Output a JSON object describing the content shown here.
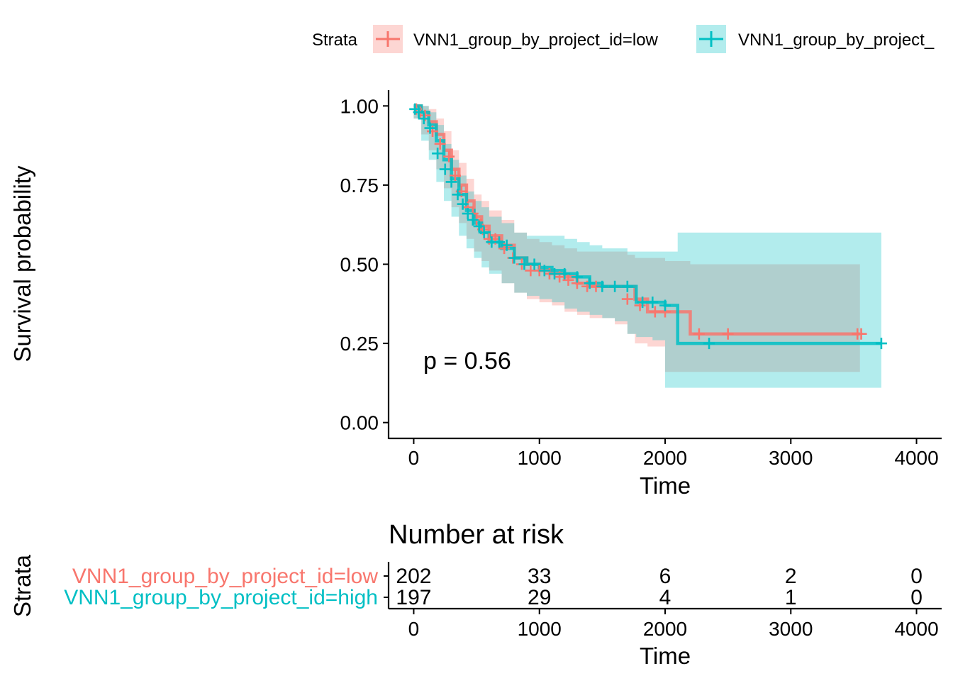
{
  "colors": {
    "low": "#F8766D",
    "high": "#00BFC4",
    "low_fill": "#F8766D",
    "high_fill": "#00BFC4",
    "overlap": "#7f7f7f"
  },
  "legend": {
    "title": "Strata",
    "items": [
      "VNN1_group_by_project_id=low",
      "VNN1_group_by_project_"
    ]
  },
  "chart_data": [
    {
      "type": "line",
      "subtype": "kaplan-meier",
      "title": "",
      "xlabel": "Time",
      "ylabel": "Survival probability",
      "xlim": [
        -200,
        4200
      ],
      "ylim": [
        -0.05,
        1.05
      ],
      "x_ticks": [
        "0",
        "1000",
        "2000",
        "3000",
        "4000"
      ],
      "y_ticks": [
        "0.00",
        "0.25",
        "0.50",
        "0.75",
        "1.00"
      ],
      "annotation": "p = 0.56",
      "series": [
        {
          "name": "VNN1_group_by_project_id=low",
          "color_key": "low",
          "x": [
            0,
            60,
            120,
            180,
            240,
            300,
            360,
            420,
            480,
            540,
            600,
            700,
            800,
            900,
            1000,
            1100,
            1200,
            1300,
            1400,
            1500,
            1600,
            1700,
            1760,
            1860,
            2000,
            2200,
            2500,
            3000,
            3550
          ],
          "y": [
            1.0,
            0.98,
            0.95,
            0.91,
            0.86,
            0.8,
            0.75,
            0.7,
            0.65,
            0.62,
            0.59,
            0.56,
            0.52,
            0.5,
            0.48,
            0.47,
            0.46,
            0.44,
            0.43,
            0.43,
            0.43,
            0.43,
            0.39,
            0.35,
            0.35,
            0.28,
            0.28,
            0.28,
            0.28
          ],
          "upper": [
            1.0,
            1.0,
            0.99,
            0.96,
            0.92,
            0.86,
            0.82,
            0.77,
            0.72,
            0.7,
            0.67,
            0.64,
            0.6,
            0.58,
            0.57,
            0.56,
            0.55,
            0.54,
            0.54,
            0.54,
            0.54,
            0.53,
            0.52,
            0.52,
            0.51,
            0.5,
            0.5,
            0.5,
            0.5
          ],
          "lower": [
            0.98,
            0.96,
            0.91,
            0.86,
            0.8,
            0.74,
            0.68,
            0.63,
            0.58,
            0.54,
            0.51,
            0.48,
            0.44,
            0.41,
            0.39,
            0.38,
            0.37,
            0.35,
            0.34,
            0.33,
            0.33,
            0.31,
            0.28,
            0.25,
            0.24,
            0.16,
            0.16,
            0.16,
            0.16
          ],
          "censor_x": [
            20,
            50,
            90,
            150,
            210,
            280,
            330,
            380,
            430,
            470,
            500,
            550,
            600,
            650,
            720,
            790,
            860,
            930,
            1000,
            1080,
            1160,
            1230,
            1300,
            1380,
            1450,
            1700,
            1800,
            1920,
            2000,
            2270,
            2500,
            3530,
            3560
          ],
          "censor_y": [
            0.99,
            0.98,
            0.97,
            0.92,
            0.88,
            0.84,
            0.78,
            0.73,
            0.68,
            0.66,
            0.64,
            0.61,
            0.58,
            0.58,
            0.55,
            0.52,
            0.5,
            0.48,
            0.48,
            0.47,
            0.46,
            0.45,
            0.44,
            0.43,
            0.43,
            0.39,
            0.37,
            0.35,
            0.35,
            0.28,
            0.28,
            0.28,
            0.28
          ]
        },
        {
          "name": "VNN1_group_by_project_id=high",
          "color_key": "high",
          "x": [
            0,
            60,
            120,
            180,
            240,
            300,
            360,
            420,
            480,
            540,
            600,
            700,
            800,
            900,
            1000,
            1100,
            1200,
            1300,
            1400,
            1500,
            1600,
            1700,
            1770,
            1900,
            2000,
            2100,
            2350,
            3000,
            3720
          ],
          "y": [
            1.0,
            0.98,
            0.94,
            0.89,
            0.83,
            0.77,
            0.72,
            0.67,
            0.63,
            0.6,
            0.57,
            0.55,
            0.52,
            0.5,
            0.49,
            0.48,
            0.47,
            0.46,
            0.44,
            0.43,
            0.43,
            0.43,
            0.38,
            0.38,
            0.37,
            0.25,
            0.25,
            0.25,
            0.25
          ],
          "upper": [
            1.0,
            1.0,
            0.98,
            0.94,
            0.88,
            0.83,
            0.78,
            0.73,
            0.7,
            0.68,
            0.65,
            0.63,
            0.6,
            0.59,
            0.59,
            0.59,
            0.58,
            0.57,
            0.56,
            0.55,
            0.55,
            0.54,
            0.54,
            0.54,
            0.54,
            0.6,
            0.6,
            0.6,
            0.6
          ],
          "lower": [
            0.98,
            0.96,
            0.89,
            0.83,
            0.76,
            0.7,
            0.65,
            0.59,
            0.55,
            0.52,
            0.49,
            0.47,
            0.44,
            0.41,
            0.4,
            0.39,
            0.38,
            0.36,
            0.35,
            0.34,
            0.33,
            0.32,
            0.28,
            0.27,
            0.26,
            0.11,
            0.11,
            0.11,
            0.11
          ],
          "censor_x": [
            10,
            40,
            80,
            130,
            190,
            250,
            300,
            350,
            390,
            430,
            470,
            520,
            560,
            620,
            680,
            740,
            800,
            880,
            960,
            1040,
            1120,
            1200,
            1300,
            1400,
            1500,
            1600,
            1700,
            1820,
            1900,
            2000,
            2350,
            3720
          ],
          "censor_y": [
            0.99,
            0.98,
            0.96,
            0.93,
            0.85,
            0.8,
            0.76,
            0.72,
            0.69,
            0.66,
            0.64,
            0.62,
            0.6,
            0.57,
            0.57,
            0.56,
            0.52,
            0.5,
            0.5,
            0.48,
            0.47,
            0.47,
            0.46,
            0.44,
            0.43,
            0.43,
            0.43,
            0.38,
            0.38,
            0.37,
            0.25,
            0.25
          ]
        }
      ]
    },
    {
      "type": "table",
      "title": "Number at risk",
      "xlabel": "Time",
      "ylabel": "Strata",
      "xlim": [
        -200,
        4200
      ],
      "x_ticks": [
        "0",
        "1000",
        "2000",
        "3000",
        "4000"
      ],
      "time_points": [
        0,
        1000,
        2000,
        3000,
        4000
      ],
      "rows": [
        {
          "label": "VNN1_group_by_project_id=low",
          "color_key": "low",
          "values": [
            "202",
            "33",
            "6",
            "2",
            "0"
          ]
        },
        {
          "label": "VNN1_group_by_project_id=high",
          "color_key": "high",
          "values": [
            "197",
            "29",
            "4",
            "1",
            "0"
          ]
        }
      ]
    }
  ]
}
